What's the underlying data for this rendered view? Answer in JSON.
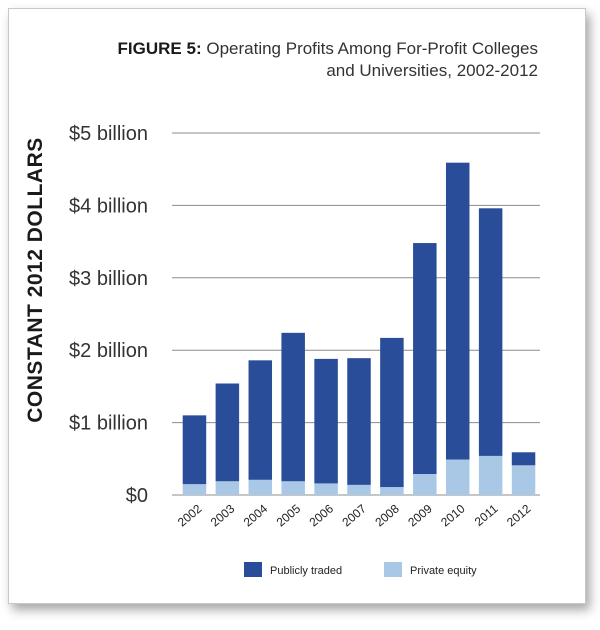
{
  "figure_label": "FIGURE 5:",
  "figure_title_line1": "Operating Profits Among For-Profit Colleges",
  "figure_title_line2": "and Universities, 2002-2012",
  "colors": {
    "publicly_traded": "#2a4d99",
    "private_equity": "#a9c8e6",
    "grid": "#8c8c8c"
  },
  "chart_data": {
    "type": "bar",
    "stacked": true,
    "ylabel": "CONSTANT 2012 DOLLARS",
    "xlabel": "",
    "ylim": [
      0,
      5
    ],
    "yunit": "billion",
    "yticks": [
      {
        "value": 0,
        "label": "$0"
      },
      {
        "value": 1,
        "label": "$1 billion"
      },
      {
        "value": 2,
        "label": "$2 billion"
      },
      {
        "value": 3,
        "label": "$3 billion"
      },
      {
        "value": 4,
        "label": "$4 billion"
      },
      {
        "value": 5,
        "label": "$5 billion"
      }
    ],
    "categories": [
      "2002",
      "2003",
      "2004",
      "2005",
      "2006",
      "2007",
      "2008",
      "2009",
      "2010",
      "2011",
      "2012"
    ],
    "series": [
      {
        "name": "Private equity",
        "values": [
          0.15,
          0.19,
          0.21,
          0.19,
          0.16,
          0.14,
          0.11,
          0.29,
          0.49,
          0.54,
          0.41
        ]
      },
      {
        "name": "Publicly traded",
        "values": [
          0.95,
          1.35,
          1.65,
          2.05,
          1.72,
          1.75,
          2.06,
          3.19,
          4.1,
          3.42,
          0.18
        ]
      }
    ],
    "legend": {
      "placement": "bottom",
      "entries": [
        "Publicly traded",
        "Private equity"
      ]
    },
    "grid": true
  }
}
